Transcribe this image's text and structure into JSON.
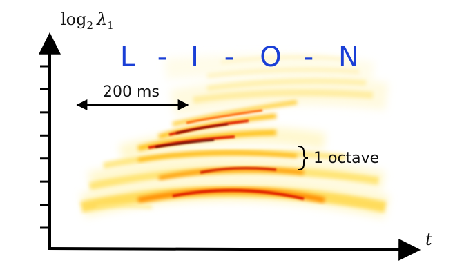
{
  "y_axis": {
    "label_main": "log",
    "label_sub": "2",
    "label_lambda": "λ",
    "label_lambda_sub": "1",
    "tick_count": 8
  },
  "x_axis": {
    "label": "t"
  },
  "word": [
    "L",
    "-",
    "I",
    "-",
    "O",
    "-",
    "N"
  ],
  "duration_annotation": "200 ms",
  "octave_annotation": "1 octave",
  "colors": {
    "word": "#1a3fd6",
    "heat_low": "#fff2a8",
    "heat_mid": "#ffc21a",
    "heat_high": "#e01e00",
    "heat_peak": "#5a0000",
    "axis": "#000000"
  }
}
